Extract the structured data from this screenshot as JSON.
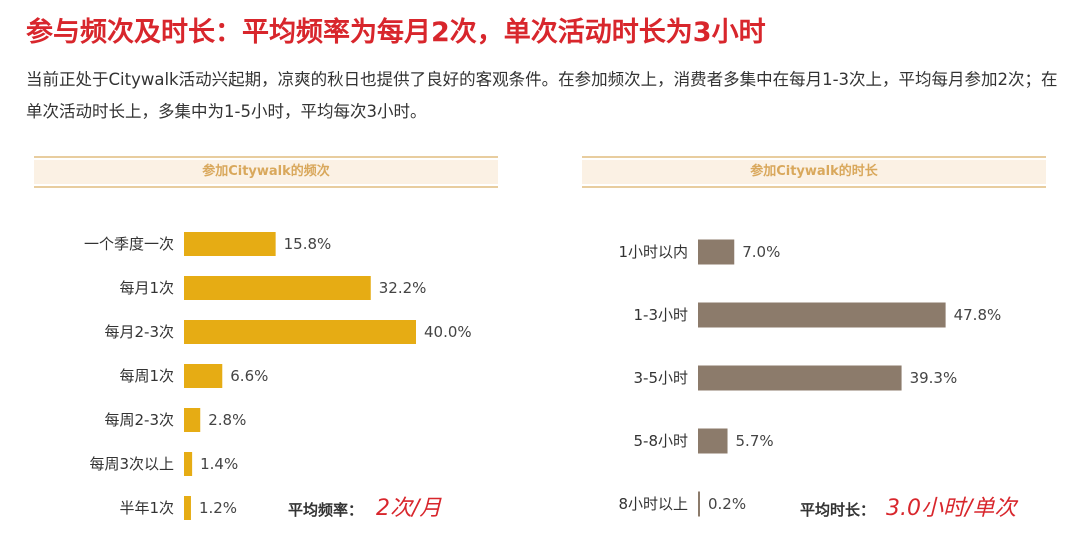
{
  "title": "参与频次及时长：平均频率为每月2次，单次活动时长为3小时",
  "description": "当前正处于Citywalk活动兴起期，凉爽的秋日也提供了良好的客观条件。在参加频次上，消费者多集中在每月1-3次上，平均每月参加2次；在单次活动时长上，多集中为1-5小时，平均每次3小时。",
  "colors": {
    "title": "#d8262c",
    "freq_bar": "#e6ac14",
    "dur_bar": "#8c7b6b",
    "header_text": "#d9a85c",
    "avg_value": "#d8262c"
  },
  "chart_data": [
    {
      "type": "bar",
      "orientation": "horizontal",
      "title": "参加Citywalk的频次",
      "categories": [
        "一个季度一次",
        "每月1次",
        "每月2-3次",
        "每周1次",
        "每周2-3次",
        "每周3次以上",
        "半年1次"
      ],
      "values": [
        15.8,
        32.2,
        40.0,
        6.6,
        2.8,
        1.4,
        1.2
      ],
      "value_labels": [
        "15.8%",
        "32.2%",
        "40.0%",
        "6.6%",
        "2.8%",
        "1.4%",
        "1.2%"
      ],
      "annotation": {
        "label": "平均频率：",
        "value": "2次/月"
      }
    },
    {
      "type": "bar",
      "orientation": "horizontal",
      "title": "参加Citywalk的时长",
      "categories": [
        "1小时以内",
        "1-3小时",
        "3-5小时",
        "5-8小时",
        "8小时以上"
      ],
      "values": [
        7.0,
        47.8,
        39.3,
        5.7,
        0.2
      ],
      "value_labels": [
        "7.0%",
        "47.8%",
        "39.3%",
        "5.7%",
        "0.2%"
      ],
      "annotation": {
        "label": "平均时长：",
        "value": "3.0小时/单次"
      }
    }
  ]
}
